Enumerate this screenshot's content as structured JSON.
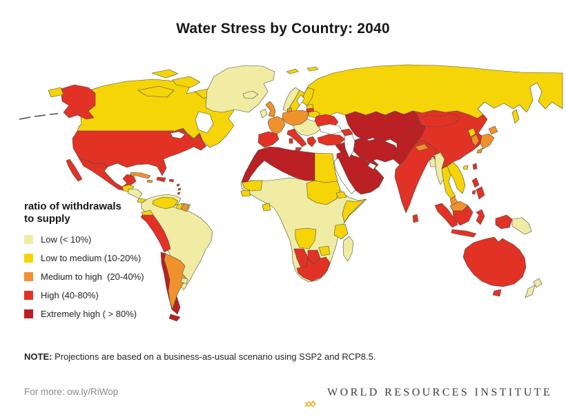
{
  "title": "Water Stress by Country: 2040",
  "legend": {
    "title_line1": "ratio of withdrawals",
    "title_line2": "to supply",
    "items": [
      {
        "level": "low",
        "label": "Low (< 10%)",
        "color": "#F0ECA4"
      },
      {
        "level": "low_medium",
        "label": "Low to medium (10-20%)",
        "color": "#F5D408"
      },
      {
        "level": "medium_high",
        "label": "Medium to high  (20-40%)",
        "color": "#F0922C"
      },
      {
        "level": "high",
        "label": "High (40-80%)",
        "color": "#E23226"
      },
      {
        "level": "extremely_high",
        "label": "Extremely high ( > 80%)",
        "color": "#BB2025"
      }
    ]
  },
  "note": {
    "label": "NOTE:",
    "text": " Projections are based on a business-as-usual scenario using SSP2 and RCP8.5."
  },
  "footer": {
    "more": "For more: ow.ly/RiWop",
    "logo_text": "WORLD RESOURCES INSTITUTE",
    "logo_color": "#F0B02A"
  },
  "map": {
    "ocean": "#FFFFFF",
    "border_color": "#4c4a3e",
    "regions": [
      {
        "id": "russia",
        "level": "low_medium"
      },
      {
        "id": "canada",
        "level": "low_medium"
      },
      {
        "id": "arctic-islands",
        "level": "low_medium"
      },
      {
        "id": "greenland",
        "level": "low"
      },
      {
        "id": "alaska",
        "level": "high"
      },
      {
        "id": "chukotka",
        "level": "low_medium"
      },
      {
        "id": "aleutian-islands",
        "level": "line"
      },
      {
        "id": "usa",
        "level": "high"
      },
      {
        "id": "mexico",
        "level": "high"
      },
      {
        "id": "guatemala-belize",
        "level": "low_medium"
      },
      {
        "id": "honduras-nicaragua",
        "level": "low"
      },
      {
        "id": "costa-rica-panama",
        "level": "low_medium"
      },
      {
        "id": "cuba",
        "level": "medium_high"
      },
      {
        "id": "jamaica",
        "level": "medium_high"
      },
      {
        "id": "hispaniola",
        "level": "high"
      },
      {
        "id": "puerto-rico",
        "level": "high"
      },
      {
        "id": "lesser-antilles",
        "level": "high"
      },
      {
        "id": "south-america-base",
        "level": "low"
      },
      {
        "id": "venezuela",
        "level": "low_medium"
      },
      {
        "id": "suriname",
        "level": "low_medium"
      },
      {
        "id": "french-guiana",
        "level": "medium_high"
      },
      {
        "id": "ecuador",
        "level": "low_medium"
      },
      {
        "id": "peru",
        "level": "high"
      },
      {
        "id": "chile",
        "level": "extremely_high"
      },
      {
        "id": "tierra-del-fuego",
        "level": "extremely_high"
      },
      {
        "id": "argentina",
        "level": "medium_high"
      },
      {
        "id": "uruguay",
        "level": "low"
      },
      {
        "id": "iceland",
        "level": "low"
      },
      {
        "id": "norway",
        "level": "low"
      },
      {
        "id": "sweden",
        "level": "low_medium"
      },
      {
        "id": "finland",
        "level": "low_medium"
      },
      {
        "id": "svalbard",
        "level": "low_medium"
      },
      {
        "id": "estonia",
        "level": "low_medium"
      },
      {
        "id": "latvia",
        "level": "high"
      },
      {
        "id": "lithuania",
        "level": "low_medium"
      },
      {
        "id": "denmark",
        "level": "medium_high"
      },
      {
        "id": "uk",
        "level": "medium_high"
      },
      {
        "id": "ireland",
        "level": "low"
      },
      {
        "id": "germany-poland",
        "level": "medium_high"
      },
      {
        "id": "france",
        "level": "medium_high"
      },
      {
        "id": "central-europe",
        "level": "low"
      },
      {
        "id": "greece",
        "level": "high"
      },
      {
        "id": "italy",
        "level": "high"
      },
      {
        "id": "iberia",
        "level": "high"
      },
      {
        "id": "belarus",
        "level": "low_medium"
      },
      {
        "id": "ukraine",
        "level": "high"
      },
      {
        "id": "turkey",
        "level": "high"
      },
      {
        "id": "caucasus",
        "level": "high"
      },
      {
        "id": "kazakhstan-central-asia",
        "level": "extremely_high"
      },
      {
        "id": "iran",
        "level": "extremely_high"
      },
      {
        "id": "iraq-syria",
        "level": "extremely_high"
      },
      {
        "id": "arabia",
        "level": "extremely_high"
      },
      {
        "id": "afghanistan-pakistan",
        "level": "extremely_high"
      },
      {
        "id": "china",
        "level": "high"
      },
      {
        "id": "mongolia",
        "level": "high"
      },
      {
        "id": "north-korea",
        "level": "low_medium"
      },
      {
        "id": "south-korea",
        "level": "medium_high"
      },
      {
        "id": "japan",
        "level": "medium_high"
      },
      {
        "id": "taiwan",
        "level": "high"
      },
      {
        "id": "hainan",
        "level": "low_medium"
      },
      {
        "id": "india",
        "level": "high"
      },
      {
        "id": "sri-lanka",
        "level": "high"
      },
      {
        "id": "nepal",
        "level": "medium_high"
      },
      {
        "id": "bangladesh",
        "level": "low"
      },
      {
        "id": "myanmar",
        "level": "low"
      },
      {
        "id": "thailand",
        "level": "low_medium"
      },
      {
        "id": "indochina",
        "level": "low_medium"
      },
      {
        "id": "malay-peninsula",
        "level": "medium_high"
      },
      {
        "id": "philippines",
        "level": "high"
      },
      {
        "id": "malaysia-borneo",
        "level": "medium_high"
      },
      {
        "id": "kalimantan",
        "level": "high"
      },
      {
        "id": "sumatra",
        "level": "high"
      },
      {
        "id": "java",
        "level": "high"
      },
      {
        "id": "sulawesi",
        "level": "high"
      },
      {
        "id": "west-papua",
        "level": "high"
      },
      {
        "id": "papua-new-guinea",
        "level": "low"
      },
      {
        "id": "australia",
        "level": "high"
      },
      {
        "id": "tasmania",
        "level": "high"
      },
      {
        "id": "new-zealand",
        "level": "low"
      },
      {
        "id": "sakhalin",
        "level": "low_medium"
      },
      {
        "id": "africa-base",
        "level": "low"
      },
      {
        "id": "maghreb",
        "level": "extremely_high"
      },
      {
        "id": "egypt",
        "level": "low_medium"
      },
      {
        "id": "mauritania",
        "level": "low_medium"
      },
      {
        "id": "senegal",
        "level": "low_medium"
      },
      {
        "id": "ghana",
        "level": "low_medium"
      },
      {
        "id": "sudan",
        "level": "low_medium"
      },
      {
        "id": "eritrea",
        "level": "low_medium"
      },
      {
        "id": "somalia",
        "level": "low_medium"
      },
      {
        "id": "tanzania",
        "level": "low_medium"
      },
      {
        "id": "angola",
        "level": "low_medium"
      },
      {
        "id": "zimbabwe",
        "level": "low_medium"
      },
      {
        "id": "namibia",
        "level": "high"
      },
      {
        "id": "botswana",
        "level": "high"
      },
      {
        "id": "south-africa",
        "level": "high"
      },
      {
        "id": "madagascar",
        "level": "low"
      },
      {
        "id": "hudson-bay",
        "level": "water"
      },
      {
        "id": "great-lakes",
        "level": "water"
      },
      {
        "id": "black-sea",
        "level": "water"
      },
      {
        "id": "caspian-sea",
        "level": "water"
      },
      {
        "id": "gulf-of-bothnia",
        "level": "water"
      },
      {
        "id": "red-sea",
        "level": "water"
      },
      {
        "id": "persian-gulf",
        "level": "water"
      }
    ]
  }
}
